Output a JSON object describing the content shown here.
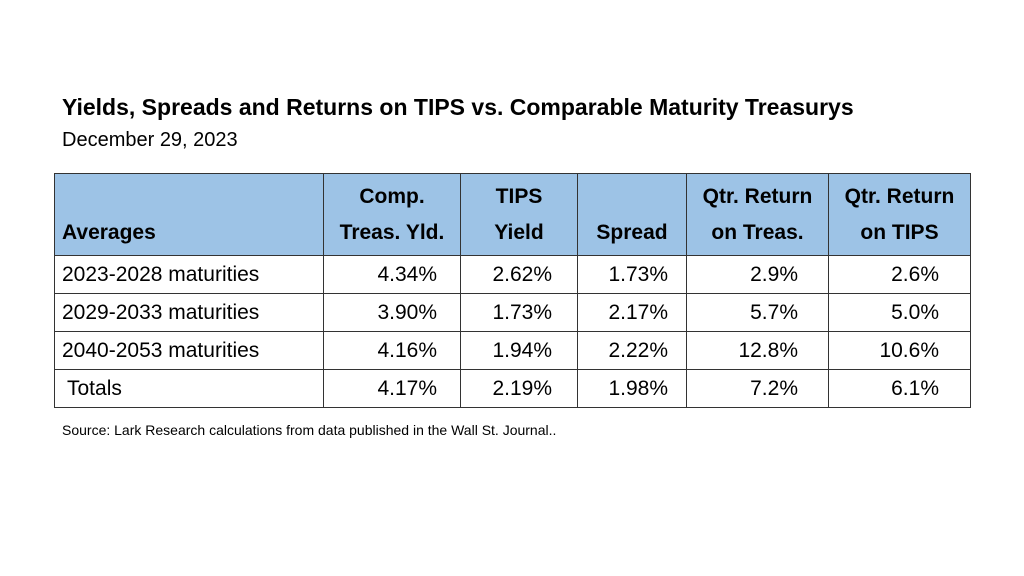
{
  "header": {
    "title": "Yields, Spreads and Returns on TIPS vs. Comparable Maturity Treasurys",
    "subtitle": "December 29, 2023"
  },
  "table": {
    "columns": [
      [
        "Averages"
      ],
      [
        "Comp.",
        "Treas. Yld."
      ],
      [
        "TIPS",
        "Yield"
      ],
      [
        "Spread"
      ],
      [
        "Qtr. Return",
        "on Treas."
      ],
      [
        "Qtr. Return",
        "on TIPS"
      ]
    ],
    "rows": [
      [
        "2023-2028 maturities",
        "4.34%",
        "2.62%",
        "1.73%",
        "2.9%",
        "2.6%"
      ],
      [
        "2029-2033 maturities",
        "3.90%",
        "1.73%",
        "2.17%",
        "5.7%",
        "5.0%"
      ],
      [
        "2040-2053 maturities",
        "4.16%",
        "1.94%",
        "2.22%",
        "12.8%",
        "10.6%"
      ],
      [
        "Totals",
        "4.17%",
        "2.19%",
        "1.98%",
        "7.2%",
        "6.1%"
      ]
    ]
  },
  "source": "Source:  Lark Research calculations from data published in the Wall St. Journal.."
}
